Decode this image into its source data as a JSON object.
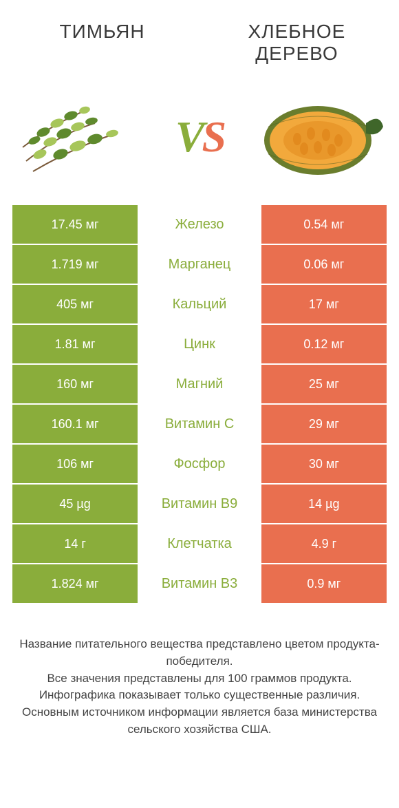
{
  "colors": {
    "green": "#8aad3b",
    "orange": "#e96f4f",
    "text": "#3a3a3a",
    "footer_text": "#444444",
    "row_gap_bg": "#ffffff"
  },
  "title_left": "Тимьян",
  "title_right": "Хлебное дерево",
  "vs_label_v": "V",
  "vs_label_s": "S",
  "product_left": {
    "name": "thyme",
    "illustration_colors": {
      "leaf_light": "#a7c65a",
      "leaf_dark": "#5f8a2d",
      "stem": "#7a5a3a"
    }
  },
  "product_right": {
    "name": "breadfruit",
    "illustration_colors": {
      "rind": "#6a7d2d",
      "flesh": "#f2a93c",
      "seeds": "#e28a1e",
      "leaf": "#3f662a"
    }
  },
  "comparison": {
    "columns": [
      "left_value",
      "nutrient",
      "right_value"
    ],
    "rows": [
      {
        "left": "17.45 мг",
        "mid": "Железо",
        "right": "0.54 мг"
      },
      {
        "left": "1.719 мг",
        "mid": "Марганец",
        "right": "0.06 мг"
      },
      {
        "left": "405 мг",
        "mid": "Кальций",
        "right": "17 мг"
      },
      {
        "left": "1.81 мг",
        "mid": "Цинк",
        "right": "0.12 мг"
      },
      {
        "left": "160 мг",
        "mid": "Магний",
        "right": "25 мг"
      },
      {
        "left": "160.1 мг",
        "mid": "Витамин C",
        "right": "29 мг"
      },
      {
        "left": "106 мг",
        "mid": "Фосфор",
        "right": "30 мг"
      },
      {
        "left": "45 µg",
        "mid": "Витамин B9",
        "right": "14 µg"
      },
      {
        "left": "14 г",
        "mid": "Клетчатка",
        "right": "4.9 г"
      },
      {
        "left": "1.824 мг",
        "mid": "Витамин B3",
        "right": "0.9 мг"
      }
    ]
  },
  "footer_lines": [
    "Название питательного вещества представлено цветом продукта-победителя.",
    "Все значения представлены для 100 граммов продукта.",
    "Инфографика показывает только существенные различия.",
    "Основным источником информации является база министерства сельского хозяйства США."
  ]
}
